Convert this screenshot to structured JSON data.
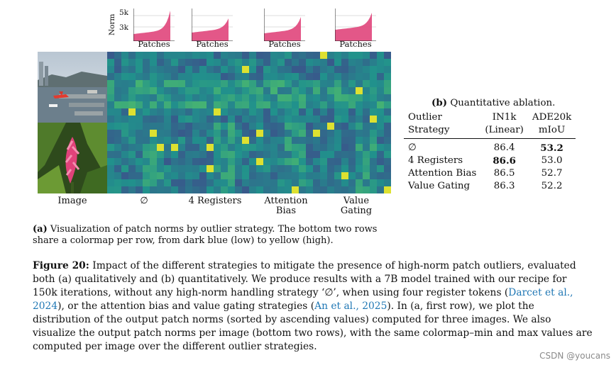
{
  "mini_plots": {
    "y_axis_label": "Norm",
    "y_ticks": [
      "5k",
      "3k"
    ],
    "x_label": "Patches",
    "fill_color": "#e0457b"
  },
  "images": [
    "harbor-photo",
    "flower-photo"
  ],
  "columns": [
    {
      "label": "Image"
    },
    {
      "label": "∅"
    },
    {
      "label": "4 Registers"
    },
    {
      "label": "Attention Bias"
    },
    {
      "label": "Value Gating"
    }
  ],
  "caption_a": {
    "prefix": "(a)",
    "text": "Visualization of patch norms by outlier strategy. The bottom two rows share a colormap per row, from dark blue (low) to yellow (high)."
  },
  "table_b": {
    "title_prefix": "(b)",
    "title": "Quantitative ablation.",
    "headers": [
      [
        "Outlier",
        "Strategy"
      ],
      [
        "IN1k",
        "(Linear)"
      ],
      [
        "ADE20k",
        "mIoU"
      ]
    ],
    "rows": [
      {
        "strategy": "∅",
        "in1k": "86.4",
        "ade": "53.2",
        "bold": "ade"
      },
      {
        "strategy": "4 Registers",
        "in1k": "86.6",
        "ade": "53.0",
        "bold": "in1k"
      },
      {
        "strategy": "Attention Bias",
        "in1k": "86.5",
        "ade": "52.7",
        "bold": ""
      },
      {
        "strategy": "Value Gating",
        "in1k": "86.3",
        "ade": "52.2",
        "bold": ""
      }
    ]
  },
  "figure_caption": {
    "label": "Figure 20:",
    "part1": "Impact of the different strategies to mitigate the presence of high-norm patch outliers, evaluated both (a) qualitatively and (b) quantitatively. We produce results with a 7B model trained with our recipe for 150k iterations, without any high-norm handling strategy ‘∅’, when using four register tokens (",
    "cite1": "Darcet et al., 2024",
    "part2": "), or the attention bias and value gating strategies (",
    "cite2": "An et al., 2025",
    "part3": "). In (a, first row), we plot the distribution of the output patch norms (sorted by ascending values) computed for three images. We also visualize the output patch norms per image (bottom two rows), with the same colormap–min and max values are computed per image over the different outlier strategies."
  },
  "watermark": "CSDN @youcans"
}
